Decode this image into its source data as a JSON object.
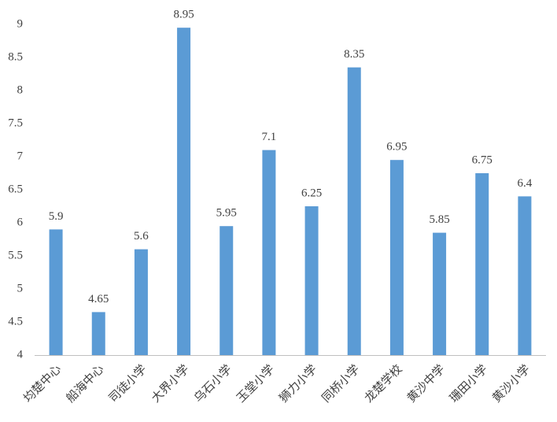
{
  "chart_data": {
    "type": "bar",
    "categories": [
      "均楚中心",
      "船海中心",
      "司徒小学",
      "大界小学",
      "乌石小学",
      "玉堂小学",
      "狮力小学",
      "同桥小学",
      "龙楚学校",
      "黄沙中学",
      "珊田小学",
      "黄沙小学"
    ],
    "values": [
      5.9,
      4.65,
      5.6,
      8.95,
      5.95,
      7.1,
      6.25,
      8.35,
      6.95,
      5.85,
      6.75,
      6.4
    ],
    "color": "#5b9bd5",
    "ylim": [
      4,
      9
    ],
    "yticks": [
      4,
      4.5,
      5,
      5.5,
      6,
      6.5,
      7,
      7.5,
      8,
      8.5,
      9
    ],
    "grid": false
  }
}
